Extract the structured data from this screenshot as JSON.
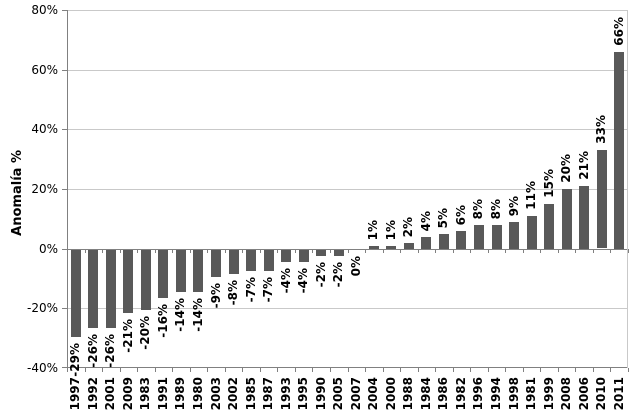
{
  "chart_data": {
    "type": "bar",
    "title": "",
    "ylabel": "Anomalía %",
    "xlabel": "",
    "ylim": [
      -40,
      80
    ],
    "grid": true,
    "legend": false,
    "categories": [
      "1997",
      "1992",
      "2001",
      "2009",
      "1983",
      "1991",
      "1989",
      "1980",
      "2003",
      "2002",
      "1985",
      "1987",
      "1993",
      "1995",
      "1990",
      "2005",
      "2007",
      "2004",
      "2000",
      "1988",
      "1984",
      "1986",
      "1982",
      "1996",
      "1994",
      "1998",
      "1981",
      "1999",
      "2008",
      "2006",
      "2010",
      "2011"
    ],
    "values": [
      -29,
      -26,
      -26,
      -21,
      -20,
      -16,
      -14,
      -14,
      -9,
      -8,
      -7,
      -7,
      -4,
      -4,
      -2,
      -2,
      0,
      1,
      1,
      2,
      4,
      5,
      6,
      8,
      8,
      9,
      11,
      15,
      20,
      21,
      33,
      66
    ],
    "labels": [
      "-29%",
      "-26%",
      "-26%",
      "-21%",
      "-20%",
      "-16%",
      "-14%",
      "-14%",
      "-9%",
      "-8%",
      "-7%",
      "-7%",
      "-4%",
      "-4%",
      "-2%",
      "-2%",
      "0%",
      "1%",
      "1%",
      "2%",
      "4%",
      "5%",
      "6%",
      "8%",
      "8%",
      "9%",
      "11%",
      "15%",
      "20%",
      "21%",
      "33%",
      "66%"
    ],
    "yticks": [
      {
        "value": 80,
        "label": "80%"
      },
      {
        "value": 60,
        "label": "60%"
      },
      {
        "value": 40,
        "label": "40%"
      },
      {
        "value": 20,
        "label": "20%"
      },
      {
        "value": 0,
        "label": "0%"
      },
      {
        "value": -20,
        "label": "-20%"
      },
      {
        "value": -40,
        "label": "-40%"
      }
    ],
    "colors": {
      "bar": "#595959",
      "grid": "#c9c9c9",
      "axis": "#808080",
      "text": "#000000"
    }
  }
}
